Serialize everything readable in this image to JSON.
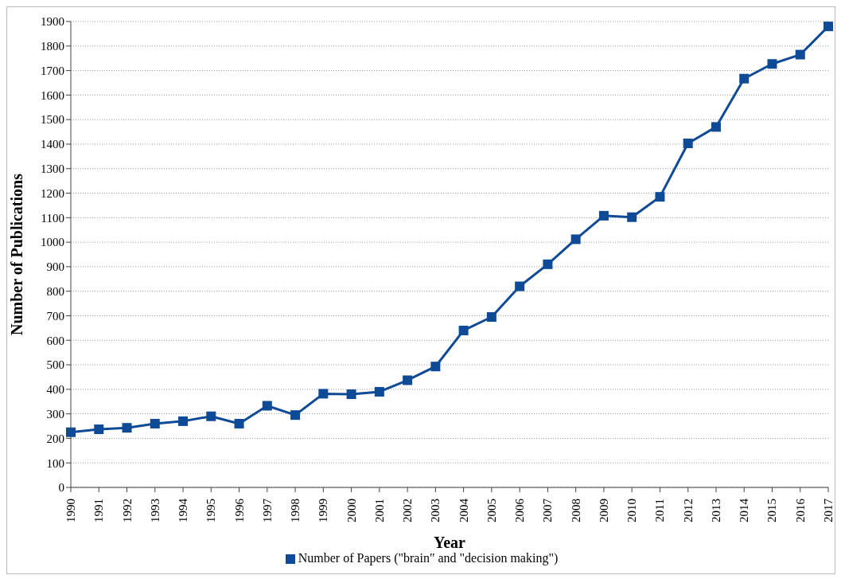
{
  "chart_data": {
    "type": "line",
    "xlabel": "Year",
    "ylabel": "Number of Publications",
    "categories": [
      "1990",
      "1991",
      "1992",
      "1993",
      "1994",
      "1995",
      "1996",
      "1997",
      "1998",
      "1999",
      "2000",
      "2001",
      "2002",
      "2003",
      "2004",
      "2005",
      "2006",
      "2007",
      "2008",
      "2009",
      "2010",
      "2011",
      "2012",
      "2013",
      "2014",
      "2015",
      "2016",
      "2017"
    ],
    "series": [
      {
        "name": "Number of Papers (\"brain\" and \"decision making\")",
        "color": "#0f4a96",
        "values": [
          225,
          237,
          243,
          260,
          270,
          290,
          260,
          333,
          295,
          382,
          380,
          390,
          437,
          493,
          640,
          695,
          820,
          910,
          1012,
          1108,
          1102,
          1185,
          1403,
          1470,
          1667,
          1727,
          1765,
          1880
        ]
      }
    ],
    "ylim": [
      0,
      1900
    ],
    "yticks": [
      0,
      100,
      200,
      300,
      400,
      500,
      600,
      700,
      800,
      900,
      1000,
      1100,
      1200,
      1300,
      1400,
      1500,
      1600,
      1700,
      1800,
      1900
    ],
    "grid": "y",
    "legend": "bottom",
    "marker": "square",
    "line_style": "solid"
  }
}
